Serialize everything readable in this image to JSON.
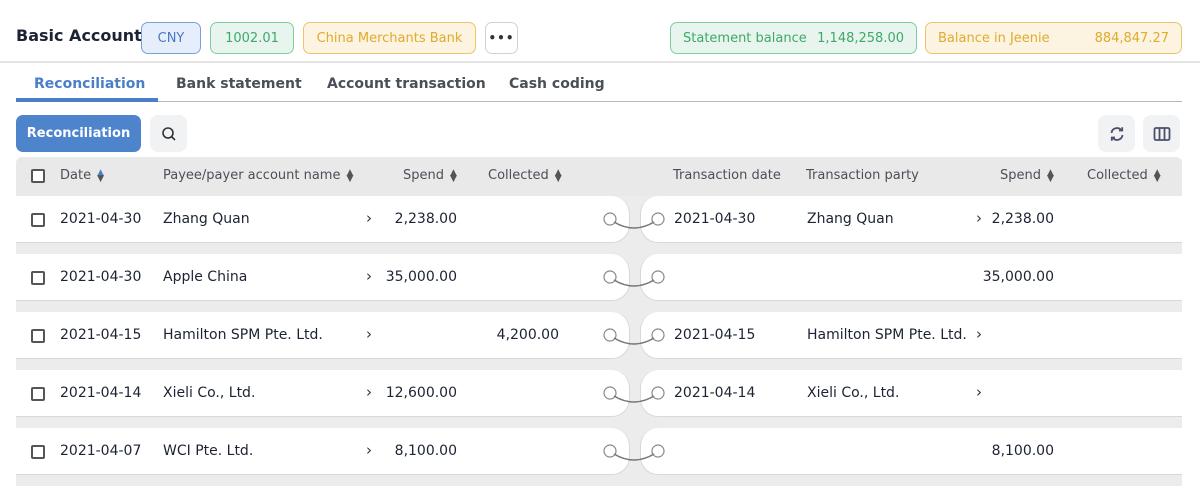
{
  "header": {
    "title": "Basic Account",
    "currency": "CNY",
    "account_code": "1002.01",
    "bank": "China Merchants Bank",
    "more_label": "•••",
    "statement_balance_label": "Statement balance",
    "statement_balance": "1,148,258.00",
    "jeenie_balance_label": "Balance in Jeenie",
    "jeenie_balance": "884,847.27"
  },
  "colors": {
    "accent": "#4d84cc",
    "green": "#3fa86a",
    "yellow": "#e0ab2e"
  },
  "tabs": [
    {
      "label": "Reconciliation",
      "active": true
    },
    {
      "label": "Bank statement"
    },
    {
      "label": "Account transaction"
    },
    {
      "label": "Cash coding"
    }
  ],
  "toolbar": {
    "reconcile_label": "Reconciliation",
    "icons": [
      "search-icon",
      "refresh-icon",
      "columns-icon"
    ]
  },
  "table": {
    "left_headers": {
      "date": "Date",
      "payee": "Payee/payer account name",
      "spend": "Spend",
      "collected": "Collected"
    },
    "right_headers": {
      "date": "Transaction date",
      "party": "Transaction party",
      "spend": "Spend",
      "collected": "Collected"
    },
    "rows": [
      {
        "date": "2021-04-30",
        "payee": "Zhang Quan",
        "spend": "2,238.00",
        "collected": "",
        "r_date": "2021-04-30",
        "r_party": "Zhang Quan",
        "r_chev": true,
        "r_spend": "2,238.00",
        "r_collected": ""
      },
      {
        "date": "2021-04-30",
        "payee": "Apple China",
        "spend": "35,000.00",
        "collected": "",
        "r_date": "",
        "r_party": "",
        "r_chev": false,
        "r_spend": "35,000.00",
        "r_collected": ""
      },
      {
        "date": "2021-04-15",
        "payee": "Hamilton SPM Pte. Ltd.",
        "spend": "",
        "collected": "4,200.00",
        "r_date": "2021-04-15",
        "r_party": "Hamilton SPM Pte. Ltd.",
        "r_chev": true,
        "r_spend": "",
        "r_collected": ""
      },
      {
        "date": "2021-04-14",
        "payee": "Xieli Co., Ltd.",
        "spend": "12,600.00",
        "collected": "",
        "r_date": "2021-04-14",
        "r_party": "Xieli Co., Ltd.",
        "r_chev": true,
        "r_spend": "",
        "r_collected": ""
      },
      {
        "date": "2021-04-07",
        "payee": "WCI Pte. Ltd.",
        "spend": "8,100.00",
        "collected": "",
        "r_date": "",
        "r_party": "",
        "r_chev": false,
        "r_spend": "8,100.00",
        "r_collected": ""
      }
    ]
  }
}
